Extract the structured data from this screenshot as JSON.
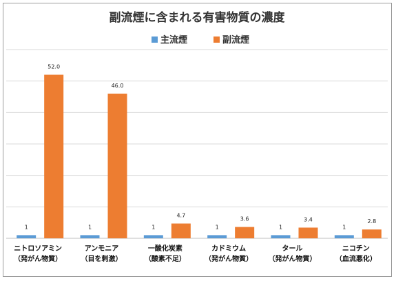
{
  "chart_data": {
    "type": "bar",
    "title": "副流煙に含まれる有害物質の濃度",
    "categories": [
      [
        "ニトロソアミン",
        "（発がん物質）"
      ],
      [
        "アンモニア",
        "（目を刺激）"
      ],
      [
        "一酸化炭素",
        "（酸素不足）"
      ],
      [
        "カドミウム",
        "（発がん物質）"
      ],
      [
        "タール",
        "（発がん物質）"
      ],
      [
        "ニコチン",
        "（血流悪化）"
      ]
    ],
    "series": [
      {
        "name": "主流煙",
        "values": [
          1,
          1,
          1,
          1,
          1,
          1
        ],
        "labels": [
          "1",
          "1",
          "1",
          "1",
          "1",
          "1"
        ],
        "color": "#5B9BD5"
      },
      {
        "name": "副流煙",
        "values": [
          52.0,
          46.0,
          4.7,
          3.6,
          3.4,
          2.8
        ],
        "labels": [
          "52.0",
          "46.0",
          "4.7",
          "3.6",
          "3.4",
          "2.8"
        ],
        "color": "#ED7D31"
      }
    ],
    "ylim": [
      0,
      60
    ],
    "grid": true,
    "legend_position": "top"
  }
}
